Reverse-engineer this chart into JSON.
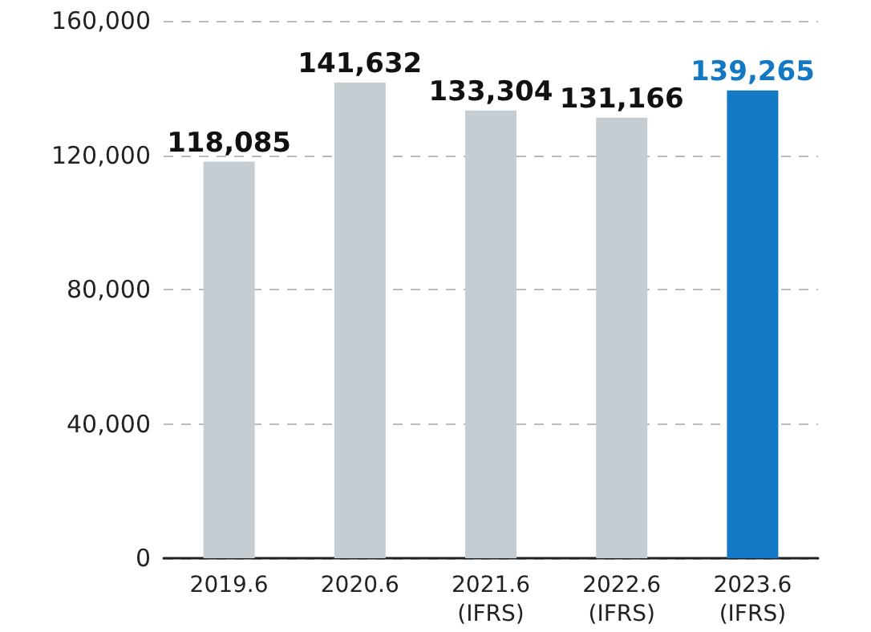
{
  "chart_data": {
    "type": "bar",
    "categories": [
      "2019.6",
      "2020.6",
      "2021.6\n(IFRS)",
      "2022.6\n(IFRS)",
      "2023.6\n(IFRS)"
    ],
    "values": [
      118085,
      141632,
      133304,
      131166,
      139265
    ],
    "colors": [
      "#c5cdd3",
      "#c5cdd3",
      "#c5cdd3",
      "#c5cdd3",
      "#1479c4"
    ],
    "value_labels": [
      "118,085",
      "141,632",
      "133,304",
      "131,166",
      "139,265"
    ],
    "ylim": [
      0,
      160000
    ],
    "yticks": [
      0,
      {
        "value": 40000,
        "label": "40,000"
      },
      {
        "value": 80000,
        "label": "80,000"
      },
      {
        "value": 120000,
        "label": "120,000"
      },
      {
        "value": 160000,
        "label": "160,000"
      }
    ],
    "grid": "y"
  }
}
